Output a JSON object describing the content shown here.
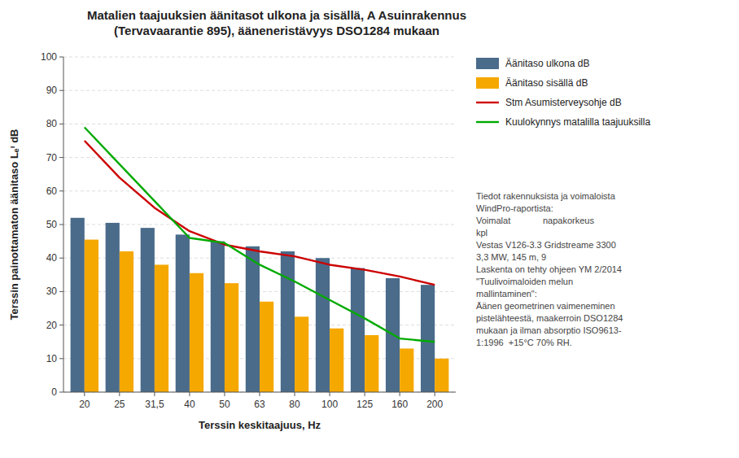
{
  "chart_data": {
    "type": "bar",
    "title": "Matalien taajuuksien äänitasot ulkona ja sisällä, A Asuinrakennus\n(Tervavaarantie 895), ääneneristävyys DSO1284 mukaan",
    "xlabel": "Terssin keskitaajuus, Hz",
    "ylabel": "Terssin painottamaton äänitaso Lₑⁱ dB",
    "categories": [
      "20",
      "25",
      "31,5",
      "40",
      "50",
      "63",
      "80",
      "100",
      "125",
      "160",
      "200"
    ],
    "series": [
      {
        "name": "Äänitaso ulkona dB",
        "type": "bar",
        "color": "#4a6b8a",
        "values": [
          52,
          50.5,
          49,
          47,
          45,
          43.5,
          42,
          40,
          37,
          34,
          32
        ]
      },
      {
        "name": "Äänitaso sisällä dB",
        "type": "bar",
        "color": "#f5a800",
        "values": [
          45.5,
          42,
          38,
          35.5,
          32.5,
          27,
          22.5,
          19,
          17,
          13,
          10
        ]
      },
      {
        "name": "Stm Asumisterveysohje dB",
        "type": "line",
        "color": "#cc0000",
        "values": [
          75,
          64,
          55,
          48,
          44,
          42,
          40.5,
          38,
          36.5,
          34.5,
          32
        ]
      },
      {
        "name": "Kuulokynnys matalilla taajuuksilla",
        "type": "line",
        "color": "#00aa00",
        "values": [
          79,
          68,
          57,
          46,
          44.5,
          38,
          33,
          27.5,
          22,
          16,
          15
        ]
      }
    ],
    "ylim": [
      0,
      100
    ],
    "yticks": [
      0,
      10,
      20,
      30,
      40,
      50,
      60,
      70,
      80,
      90,
      100
    ],
    "grid": true,
    "legend": "right",
    "annotation": "Tiedot rakennuksista ja voimaloista\nWindPro-raportista:\nVoimalat             napakorkeus\nkpl\nVestas V126-3.3 Gridstreame 3300\n3,3 MW, 145 m, 9\nLaskenta on tehty ohjeen YM 2/2014\n\"Tuulivoimaloiden melun\nmallintaminen\":\nÄänen geometrinen vaimeneminen\npistelähteestä, maakerroin DSO1284\nmukaan ja ilman absorptio ISO9613-\n1:1996  +15°C 70% RH."
  }
}
